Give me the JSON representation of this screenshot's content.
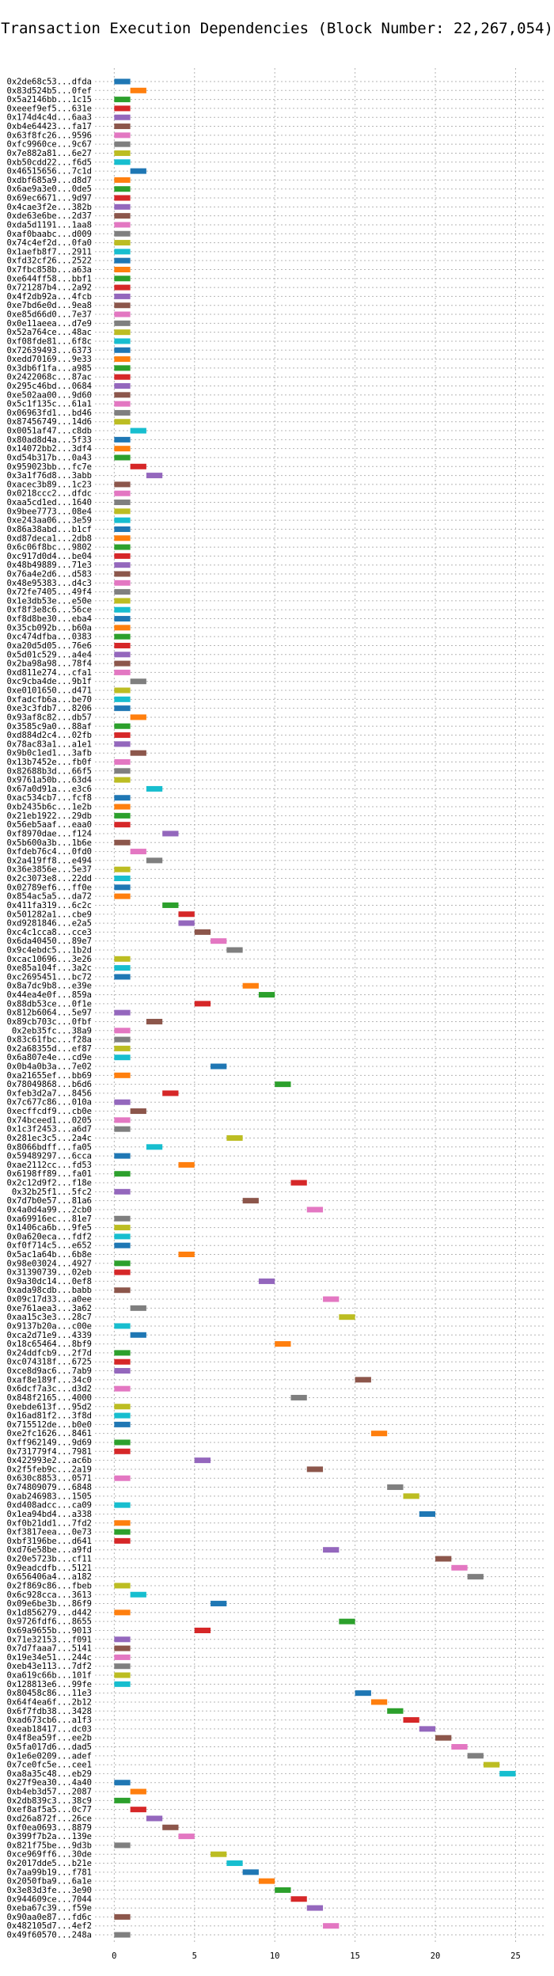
{
  "chart_data": {
    "type": "bar",
    "orientation": "horizontal",
    "title": "Transaction Execution Dependencies (Block Number: 22,267,054)",
    "xlabel": "",
    "ylabel": "",
    "xlim": [
      -1.2,
      26.8
    ],
    "xticks": [
      0,
      5,
      10,
      15,
      20,
      25
    ],
    "grid": "x",
    "palette": [
      "#1f77b4",
      "#ff7f0e",
      "#2ca02c",
      "#d62728",
      "#9467bd",
      "#8c564b",
      "#e377c2",
      "#7f7f7f",
      "#bcbd22",
      "#17becf"
    ],
    "transactions": [
      {
        "label": "0x2de68c53...dfda",
        "start": 0,
        "end": 1
      },
      {
        "label": "0x83d524b5...0fef",
        "start": 1,
        "end": 2
      },
      {
        "label": "0x5a2146bb...1c15",
        "start": 0,
        "end": 1
      },
      {
        "label": "0xeeef9ef5...631e",
        "start": 0,
        "end": 1
      },
      {
        "label": "0x174d4c4d...6aa3",
        "start": 0,
        "end": 1
      },
      {
        "label": "0xb4e64423...fa17",
        "start": 0,
        "end": 1
      },
      {
        "label": "0x63f8fc26...9596",
        "start": 0,
        "end": 1
      },
      {
        "label": "0xfc9960ce...9c67",
        "start": 0,
        "end": 1
      },
      {
        "label": "0x7e882a81...6e27",
        "start": 0,
        "end": 1
      },
      {
        "label": "0xb50cdd22...f6d5",
        "start": 0,
        "end": 1
      },
      {
        "label": "0x46515656...7c1d",
        "start": 1,
        "end": 2
      },
      {
        "label": "0xdbf685a9...d8d7",
        "start": 0,
        "end": 1
      },
      {
        "label": "0x6ae9a3e0...0de5",
        "start": 0,
        "end": 1
      },
      {
        "label": "0x69ec6671...9d97",
        "start": 0,
        "end": 1
      },
      {
        "label": "0x4cae3f2e...382b",
        "start": 0,
        "end": 1
      },
      {
        "label": "0xde63e6be...2d37",
        "start": 0,
        "end": 1
      },
      {
        "label": "0xda5d1191...1aa8",
        "start": 0,
        "end": 1
      },
      {
        "label": "0xaf0baabc...d009",
        "start": 0,
        "end": 1
      },
      {
        "label": "0x74c4ef2d...0fa0",
        "start": 0,
        "end": 1
      },
      {
        "label": "0x1aefb8f7...2911",
        "start": 0,
        "end": 1
      },
      {
        "label": "0xfd32cf26...2522",
        "start": 0,
        "end": 1
      },
      {
        "label": "0x7fbc858b...a63a",
        "start": 0,
        "end": 1
      },
      {
        "label": "0xe644ff58...bbf1",
        "start": 0,
        "end": 1
      },
      {
        "label": "0x721287b4...2a92",
        "start": 0,
        "end": 1
      },
      {
        "label": "0x4f2db92a...4fcb",
        "start": 0,
        "end": 1
      },
      {
        "label": "0xe7bd6e0d...9ea8",
        "start": 0,
        "end": 1
      },
      {
        "label": "0xe85d66d0...7e37",
        "start": 0,
        "end": 1
      },
      {
        "label": "0x0e11aeea...d7e9",
        "start": 0,
        "end": 1
      },
      {
        "label": "0x52a764ce...48ac",
        "start": 0,
        "end": 1
      },
      {
        "label": "0xf08fde81...6f8c",
        "start": 0,
        "end": 1
      },
      {
        "label": "0x72639493...6373",
        "start": 0,
        "end": 1
      },
      {
        "label": "0xedd70169...9e33",
        "start": 0,
        "end": 1
      },
      {
        "label": "0x3db6f1fa...a985",
        "start": 0,
        "end": 1
      },
      {
        "label": "0x2422068c...87ac",
        "start": 0,
        "end": 1
      },
      {
        "label": "0x295c46bd...0684",
        "start": 0,
        "end": 1
      },
      {
        "label": "0xe502aa00...9d60",
        "start": 0,
        "end": 1
      },
      {
        "label": "0x5c1f135c...61a1",
        "start": 0,
        "end": 1
      },
      {
        "label": "0x06963fd1...bd46",
        "start": 0,
        "end": 1
      },
      {
        "label": "0x87456749...14d6",
        "start": 0,
        "end": 1
      },
      {
        "label": "0x0051af47...c8db",
        "start": 1,
        "end": 2
      },
      {
        "label": "0x80ad8d4a...5f33",
        "start": 0,
        "end": 1
      },
      {
        "label": "0x14072bb2...3df4",
        "start": 0,
        "end": 1
      },
      {
        "label": "0xd54b317b...0a43",
        "start": 0,
        "end": 1
      },
      {
        "label": "0x959023bb...fc7e",
        "start": 1,
        "end": 2
      },
      {
        "label": "0x3a1f76d8...3abb",
        "start": 2,
        "end": 3
      },
      {
        "label": "0xacec3b89...1c23",
        "start": 0,
        "end": 1
      },
      {
        "label": "0x0218ccc2...dfdc",
        "start": 0,
        "end": 1
      },
      {
        "label": "0xaa5cd1ed...1640",
        "start": 0,
        "end": 1
      },
      {
        "label": "0x9bee7773...08e4",
        "start": 0,
        "end": 1
      },
      {
        "label": "0xe243aa06...3e59",
        "start": 0,
        "end": 1
      },
      {
        "label": "0x86a38abd...b1cf",
        "start": 0,
        "end": 1
      },
      {
        "label": "0xd87deca1...2db8",
        "start": 0,
        "end": 1
      },
      {
        "label": "0x6c06f8bc...9802",
        "start": 0,
        "end": 1
      },
      {
        "label": "0xc917d0d4...be04",
        "start": 0,
        "end": 1
      },
      {
        "label": "0x48b49889...71e3",
        "start": 0,
        "end": 1
      },
      {
        "label": "0x76a4e2d6...d583",
        "start": 0,
        "end": 1
      },
      {
        "label": "0x48e95383...d4c3",
        "start": 0,
        "end": 1
      },
      {
        "label": "0x72fe7405...49f4",
        "start": 0,
        "end": 1
      },
      {
        "label": "0x1e3db53e...e50e",
        "start": 0,
        "end": 1
      },
      {
        "label": "0xf8f3e8c6...56ce",
        "start": 0,
        "end": 1
      },
      {
        "label": "0xf8d8be30...eba4",
        "start": 0,
        "end": 1
      },
      {
        "label": "0x35cb092b...b60a",
        "start": 0,
        "end": 1
      },
      {
        "label": "0xc474dfba...0383",
        "start": 0,
        "end": 1
      },
      {
        "label": "0xa20d5d05...76e6",
        "start": 0,
        "end": 1
      },
      {
        "label": "0x5d01c529...a4e4",
        "start": 0,
        "end": 1
      },
      {
        "label": "0x2ba98a98...78f4",
        "start": 0,
        "end": 1
      },
      {
        "label": "0xd811e274...cfa1",
        "start": 0,
        "end": 1
      },
      {
        "label": "0xc9cba4de...9b1f",
        "start": 1,
        "end": 2
      },
      {
        "label": "0xe0101650...d471",
        "start": 0,
        "end": 1
      },
      {
        "label": "0xfadcfb6a...be70",
        "start": 0,
        "end": 1
      },
      {
        "label": "0xe3c3fdb7...8206",
        "start": 0,
        "end": 1
      },
      {
        "label": "0x93af8c82...db57",
        "start": 1,
        "end": 2
      },
      {
        "label": "0x3585c9a0...88af",
        "start": 0,
        "end": 1
      },
      {
        "label": "0xd884d2c4...02fb",
        "start": 0,
        "end": 1
      },
      {
        "label": "0x78ac83a1...a1e1",
        "start": 0,
        "end": 1
      },
      {
        "label": "0x9b0c1ed1...3afb",
        "start": 1,
        "end": 2
      },
      {
        "label": "0x13b7452e...fb0f",
        "start": 0,
        "end": 1
      },
      {
        "label": "0x82688b3d...66f5",
        "start": 0,
        "end": 1
      },
      {
        "label": "0x9761a50b...63d4",
        "start": 0,
        "end": 1
      },
      {
        "label": "0x67a0d91a...e3c6",
        "start": 2,
        "end": 3
      },
      {
        "label": "0xac534cb7...fcf8",
        "start": 0,
        "end": 1
      },
      {
        "label": "0xb2435b6c...1e2b",
        "start": 0,
        "end": 1
      },
      {
        "label": "0x21eb1922...29db",
        "start": 0,
        "end": 1
      },
      {
        "label": "0x56eb5aaf...eaa0",
        "start": 0,
        "end": 1
      },
      {
        "label": "0xf8970dae...f124",
        "start": 3,
        "end": 4
      },
      {
        "label": "0x5b600a3b...1b6e",
        "start": 0,
        "end": 1
      },
      {
        "label": "0xfdeb76c4...0fd0",
        "start": 1,
        "end": 2
      },
      {
        "label": "0x2a419ff8...e494",
        "start": 2,
        "end": 3
      },
      {
        "label": "0x36e3856e...5e37",
        "start": 0,
        "end": 1
      },
      {
        "label": "0x2c3073e8...22dd",
        "start": 0,
        "end": 1
      },
      {
        "label": "0x02789ef6...ff0e",
        "start": 0,
        "end": 1
      },
      {
        "label": "0x854ac5a5...da72",
        "start": 0,
        "end": 1
      },
      {
        "label": "0x411fa319...6c2c",
        "start": 3,
        "end": 4
      },
      {
        "label": "0x501282a1...cbe9",
        "start": 4,
        "end": 5
      },
      {
        "label": "0xd9281846...e2a5",
        "start": 4,
        "end": 5
      },
      {
        "label": "0xc4c1cca8...cce3",
        "start": 5,
        "end": 6
      },
      {
        "label": "0x6da40450...89e7",
        "start": 6,
        "end": 7
      },
      {
        "label": "0x9c4ebdc5...1b2d",
        "start": 7,
        "end": 8
      },
      {
        "label": "0xcac10696...3e26",
        "start": 0,
        "end": 1
      },
      {
        "label": "0xe85a104f...3a2c",
        "start": 0,
        "end": 1
      },
      {
        "label": "0xc2695451...bc72",
        "start": 0,
        "end": 1
      },
      {
        "label": "0x8a7dc9b8...e39e",
        "start": 8,
        "end": 9
      },
      {
        "label": "0x44ea4e0f...859a",
        "start": 9,
        "end": 10
      },
      {
        "label": "0x88db53ce...0f1e",
        "start": 5,
        "end": 6
      },
      {
        "label": "0x812b6064...5e97",
        "start": 0,
        "end": 1
      },
      {
        "label": "0x89cb703c...0fbf",
        "start": 2,
        "end": 3
      },
      {
        "label": "0x2eb35fc...38a9",
        "start": 0,
        "end": 1
      },
      {
        "label": "0x83c61fbc...f28a",
        "start": 0,
        "end": 1
      },
      {
        "label": "0x2a68355d...ef87",
        "start": 0,
        "end": 1
      },
      {
        "label": "0x6a807e4e...cd9e",
        "start": 0,
        "end": 1
      },
      {
        "label": "0x0b4a0b3a...7e02",
        "start": 6,
        "end": 7
      },
      {
        "label": "0xa21655ef...bb69",
        "start": 0,
        "end": 1
      },
      {
        "label": "0x78049868...b6d6",
        "start": 10,
        "end": 11
      },
      {
        "label": "0xfeb3d2a7...8456",
        "start": 3,
        "end": 4
      },
      {
        "label": "0x7c677c86...010a",
        "start": 0,
        "end": 1
      },
      {
        "label": "0xecffcdf9...cb0e",
        "start": 1,
        "end": 2
      },
      {
        "label": "0x74bceed1...0205",
        "start": 0,
        "end": 1
      },
      {
        "label": "0x1c3f2453...a6d7",
        "start": 0,
        "end": 1
      },
      {
        "label": "0x281ec3c5...2a4c",
        "start": 7,
        "end": 8
      },
      {
        "label": "0x8066bdff...fa05",
        "start": 2,
        "end": 3
      },
      {
        "label": "0x59489297...6cca",
        "start": 0,
        "end": 1
      },
      {
        "label": "0xae2112cc...fd53",
        "start": 4,
        "end": 5
      },
      {
        "label": "0x6198ff89...fa01",
        "start": 0,
        "end": 1
      },
      {
        "label": "0x2c12d9f2...f18e",
        "start": 11,
        "end": 12
      },
      {
        "label": "0x32b25f1...5fc2",
        "start": 0,
        "end": 1
      },
      {
        "label": "0x7d7b0e57...81a6",
        "start": 8,
        "end": 9
      },
      {
        "label": "0x4a0d4a99...2cb0",
        "start": 12,
        "end": 13
      },
      {
        "label": "0xa69916ec...81e7",
        "start": 0,
        "end": 1
      },
      {
        "label": "0x1406ca6b...9fe5",
        "start": 0,
        "end": 1
      },
      {
        "label": "0x0a620eca...fdf2",
        "start": 0,
        "end": 1
      },
      {
        "label": "0xf0f714c5...e652",
        "start": 0,
        "end": 1
      },
      {
        "label": "0x5ac1a64b...6b8e",
        "start": 4,
        "end": 5
      },
      {
        "label": "0x98e03024...4927",
        "start": 0,
        "end": 1
      },
      {
        "label": "0x31390739...02eb",
        "start": 0,
        "end": 1
      },
      {
        "label": "0x9a30dc14...0ef8",
        "start": 9,
        "end": 10
      },
      {
        "label": "0xada98cdb...babb",
        "start": 0,
        "end": 1
      },
      {
        "label": "0x09c17d33...a0ee",
        "start": 13,
        "end": 14
      },
      {
        "label": "0xe761aea3...3a62",
        "start": 1,
        "end": 2
      },
      {
        "label": "0xaa15c3e3...28c7",
        "start": 14,
        "end": 15
      },
      {
        "label": "0x9137b20a...c00e",
        "start": 0,
        "end": 1
      },
      {
        "label": "0xca2d71e9...4339",
        "start": 1,
        "end": 2
      },
      {
        "label": "0x18c65464...8bf9",
        "start": 10,
        "end": 11
      },
      {
        "label": "0x24ddfcb9...2f7d",
        "start": 0,
        "end": 1
      },
      {
        "label": "0xc074318f...6725",
        "start": 0,
        "end": 1
      },
      {
        "label": "0xce8d9ac6...7ab9",
        "start": 0,
        "end": 1
      },
      {
        "label": "0xaf8e189f...34c0",
        "start": 15,
        "end": 16
      },
      {
        "label": "0x6dcf7a3c...d3d2",
        "start": 0,
        "end": 1
      },
      {
        "label": "0x848f2165...4000",
        "start": 11,
        "end": 12
      },
      {
        "label": "0xebde613f...95d2",
        "start": 0,
        "end": 1
      },
      {
        "label": "0x16ad81f2...3f8d",
        "start": 0,
        "end": 1
      },
      {
        "label": "0x715512de...b0e0",
        "start": 0,
        "end": 1
      },
      {
        "label": "0xe2fc1626...8461",
        "start": 16,
        "end": 17
      },
      {
        "label": "0xff962149...9d69",
        "start": 0,
        "end": 1
      },
      {
        "label": "0x731779f4...7981",
        "start": 0,
        "end": 1
      },
      {
        "label": "0x422993e2...ac6b",
        "start": 5,
        "end": 6
      },
      {
        "label": "0x2f5feb9c...2a19",
        "start": 12,
        "end": 13
      },
      {
        "label": "0x630c8853...0571",
        "start": 0,
        "end": 1
      },
      {
        "label": "0x74809079...6848",
        "start": 17,
        "end": 18
      },
      {
        "label": "0xab246983...1505",
        "start": 18,
        "end": 19
      },
      {
        "label": "0xd408adcc...ca09",
        "start": 0,
        "end": 1
      },
      {
        "label": "0x1ea94bd4...a338",
        "start": 19,
        "end": 20
      },
      {
        "label": "0xf0b21dd1...7fd2",
        "start": 0,
        "end": 1
      },
      {
        "label": "0xf3817eea...0e73",
        "start": 0,
        "end": 1
      },
      {
        "label": "0xbf3196be...d641",
        "start": 0,
        "end": 1
      },
      {
        "label": "0xd76e58be...a9fd",
        "start": 13,
        "end": 14
      },
      {
        "label": "0x20e5723b...cf11",
        "start": 20,
        "end": 21
      },
      {
        "label": "0x9eadcdfb...5121",
        "start": 21,
        "end": 22
      },
      {
        "label": "0x656406a4...a182",
        "start": 22,
        "end": 23
      },
      {
        "label": "0x2f869c86...fbeb",
        "start": 0,
        "end": 1
      },
      {
        "label": "0x6c928cca...3613",
        "start": 1,
        "end": 2
      },
      {
        "label": "0x09e6be3b...86f9",
        "start": 6,
        "end": 7
      },
      {
        "label": "0x1d856279...d442",
        "start": 0,
        "end": 1
      },
      {
        "label": "0x9726fdf6...8655",
        "start": 14,
        "end": 15
      },
      {
        "label": "0x69a9655b...9013",
        "start": 5,
        "end": 6
      },
      {
        "label": "0x71e32153...f091",
        "start": 0,
        "end": 1
      },
      {
        "label": "0x7d7faaa7...5141",
        "start": 0,
        "end": 1
      },
      {
        "label": "0x19e34e51...244c",
        "start": 0,
        "end": 1
      },
      {
        "label": "0xeb43e113...7df2",
        "start": 0,
        "end": 1
      },
      {
        "label": "0xa619c66b...101f",
        "start": 0,
        "end": 1
      },
      {
        "label": "0x128813e6...99fe",
        "start": 0,
        "end": 1
      },
      {
        "label": "0x80458c86...11e3",
        "start": 15,
        "end": 16
      },
      {
        "label": "0x64f4ea6f...2b12",
        "start": 16,
        "end": 17
      },
      {
        "label": "0x6f7fdb38...3428",
        "start": 17,
        "end": 18
      },
      {
        "label": "0xad673cb6...a1f3",
        "start": 18,
        "end": 19
      },
      {
        "label": "0xeab18417...dc03",
        "start": 19,
        "end": 20
      },
      {
        "label": "0x4f8ea59f...ee2b",
        "start": 20,
        "end": 21
      },
      {
        "label": "0x5fa017d6...dad5",
        "start": 21,
        "end": 22
      },
      {
        "label": "0x1e6e0209...adef",
        "start": 22,
        "end": 23
      },
      {
        "label": "0x7ce0fc5e...cee1",
        "start": 23,
        "end": 24
      },
      {
        "label": "0xa8a35c48...eb29",
        "start": 24,
        "end": 25
      },
      {
        "label": "0x27f9ea30...4a40",
        "start": 0,
        "end": 1
      },
      {
        "label": "0xb4eb3d57...2087",
        "start": 1,
        "end": 2
      },
      {
        "label": "0x2db839c3...38c9",
        "start": 0,
        "end": 1
      },
      {
        "label": "0xef8af5a5...0c77",
        "start": 1,
        "end": 2
      },
      {
        "label": "0xd26a872f...26ce",
        "start": 2,
        "end": 3
      },
      {
        "label": "0xf0ea0693...8879",
        "start": 3,
        "end": 4
      },
      {
        "label": "0x399f7b2a...139e",
        "start": 4,
        "end": 5
      },
      {
        "label": "0x821f75be...9d3b",
        "start": 0,
        "end": 1
      },
      {
        "label": "0xce969ff6...30de",
        "start": 6,
        "end": 7
      },
      {
        "label": "0x2017dde5...b21e",
        "start": 7,
        "end": 8
      },
      {
        "label": "0x7aa99b19...f781",
        "start": 8,
        "end": 9
      },
      {
        "label": "0x2050fba9...6a1e",
        "start": 9,
        "end": 10
      },
      {
        "label": "0x3e83d3fe...3e90",
        "start": 10,
        "end": 11
      },
      {
        "label": "0x944609ce...7044",
        "start": 11,
        "end": 12
      },
      {
        "label": "0xeba67c39...f59e",
        "start": 12,
        "end": 13
      },
      {
        "label": "0x90aa0e87...fd6c",
        "start": 0,
        "end": 1
      },
      {
        "label": "0x482105d7...4ef2",
        "start": 13,
        "end": 14
      },
      {
        "label": "0x49f60570...248a",
        "start": 0,
        "end": 1
      }
    ]
  }
}
